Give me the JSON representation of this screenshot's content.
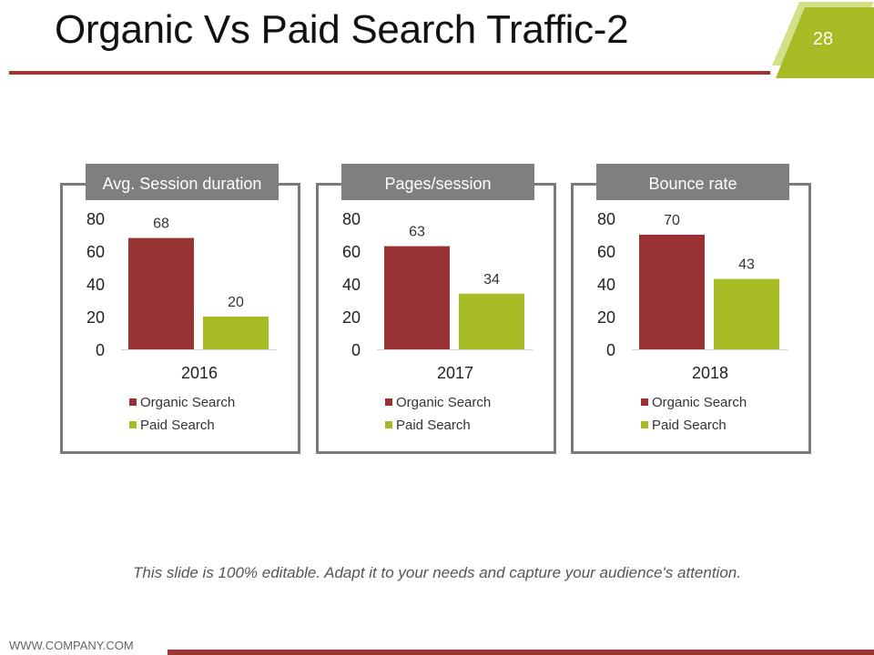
{
  "slide": {
    "title": "Organic Vs Paid Search Traffic-2",
    "page_number": "28",
    "note": "This slide is 100% editable. Adapt it to your needs and capture your audience's attention.",
    "website": "WWW.COMPANY.COM"
  },
  "colors": {
    "organic": "#993333",
    "paid": "#a8bb24",
    "accent_line": "#9e3535",
    "badge": "#a8bb24",
    "header_bg": "#7f7f7f"
  },
  "chart_data": [
    {
      "type": "bar",
      "title": "Avg. Session duration",
      "categories": [
        "2016"
      ],
      "series": [
        {
          "name": "Organic Search",
          "values": [
            68
          ]
        },
        {
          "name": "Paid Search",
          "values": [
            20
          ]
        }
      ],
      "ylim": [
        0,
        80
      ],
      "yticks": [
        "80",
        "60",
        "40",
        "20",
        "0"
      ],
      "legend": "bottom-left"
    },
    {
      "type": "bar",
      "title": "Pages/session",
      "categories": [
        "2017"
      ],
      "series": [
        {
          "name": "Organic Search",
          "values": [
            63
          ]
        },
        {
          "name": "Paid Search",
          "values": [
            34
          ]
        }
      ],
      "ylim": [
        0,
        80
      ],
      "yticks": [
        "80",
        "60",
        "40",
        "20",
        "0"
      ],
      "legend": "bottom-left"
    },
    {
      "type": "bar",
      "title": "Bounce rate",
      "categories": [
        "2018"
      ],
      "series": [
        {
          "name": "Organic Search",
          "values": [
            70
          ]
        },
        {
          "name": "Paid Search",
          "values": [
            43
          ]
        }
      ],
      "ylim": [
        0,
        80
      ],
      "yticks": [
        "80",
        "60",
        "40",
        "20",
        "0"
      ],
      "legend": "bottom-left"
    }
  ]
}
